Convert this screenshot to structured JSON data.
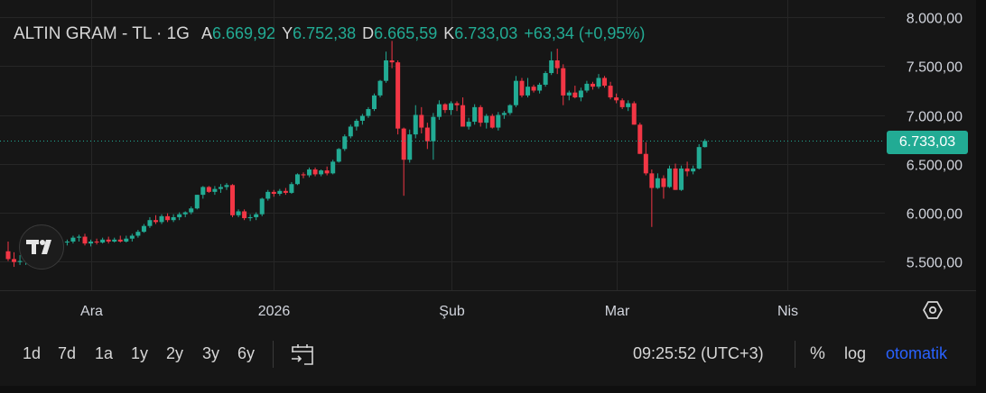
{
  "legend": {
    "symbol": "ALTIN GRAM - TL · 1G",
    "open_label": "A",
    "open": "6.669,92",
    "high_label": "Y",
    "high": "6.752,38",
    "low_label": "D",
    "low": "6.665,59",
    "close_label": "K",
    "close": "6.733,03",
    "change": "+63,34 (+0,95%)"
  },
  "last_price_tag": "6.733,03",
  "toolbar": {
    "timeframes": [
      "1d",
      "7d",
      "1a",
      "1y",
      "2y",
      "3y",
      "6y"
    ],
    "clock": "09:25:52 (UTC+3)",
    "percent_label": "%",
    "log_label": "log",
    "auto_label": "otomatik"
  },
  "colors": {
    "up": "#22ab94",
    "down": "#f23645",
    "background": "#161616",
    "grid": "#262626",
    "axis_text": "#d1d4dc",
    "accent": "#2962ff"
  },
  "icons": {
    "logo": "tradingview-logo-icon",
    "settings": "settings-icon",
    "date_range": "calendar-range-icon"
  },
  "chart_data": {
    "type": "candlestick",
    "title": "ALTIN GRAM - TL · 1G",
    "yaxis": {
      "ticks": [
        5500,
        6000,
        6500,
        7000,
        7500,
        8000
      ],
      "tick_labels": [
        "5.500,00",
        "6.000,00",
        "6.500,00",
        "7.000,00",
        "7.500,00",
        "8.000,00"
      ],
      "range": [
        5200,
        8180
      ],
      "position": "right"
    },
    "xaxis": {
      "tick_labels": [
        {
          "label": "Ara",
          "index": 14
        },
        {
          "label": "2026",
          "index": 45
        },
        {
          "label": "Şub",
          "index": 75
        },
        {
          "label": "Mar",
          "index": 103
        },
        {
          "label": "Nis",
          "index": 132
        }
      ]
    },
    "grid": true,
    "last_price": 6733.03,
    "candles": [
      [
        5600,
        5700,
        5500,
        5520
      ],
      [
        5520,
        5590,
        5440,
        5490
      ],
      [
        5490,
        5560,
        5460,
        5500
      ],
      [
        5500,
        5600,
        5460,
        5570
      ],
      [
        5570,
        5620,
        5520,
        5590
      ],
      [
        5590,
        5640,
        5560,
        5620
      ],
      [
        5620,
        5660,
        5580,
        5640
      ],
      [
        5640,
        5660,
        5610,
        5650
      ],
      [
        5650,
        5680,
        5620,
        5660
      ],
      [
        5660,
        5700,
        5630,
        5690
      ],
      [
        5690,
        5720,
        5660,
        5700
      ],
      [
        5700,
        5760,
        5680,
        5740
      ],
      [
        5740,
        5770,
        5700,
        5750
      ],
      [
        5750,
        5780,
        5660,
        5680
      ],
      [
        5680,
        5720,
        5650,
        5700
      ],
      [
        5700,
        5730,
        5670,
        5690
      ],
      [
        5690,
        5740,
        5680,
        5720
      ],
      [
        5720,
        5750,
        5680,
        5700
      ],
      [
        5700,
        5740,
        5690,
        5720
      ],
      [
        5720,
        5760,
        5690,
        5700
      ],
      [
        5700,
        5760,
        5690,
        5730
      ],
      [
        5730,
        5780,
        5700,
        5760
      ],
      [
        5760,
        5820,
        5740,
        5800
      ],
      [
        5800,
        5880,
        5790,
        5860
      ],
      [
        5860,
        5950,
        5840,
        5920
      ],
      [
        5920,
        5970,
        5880,
        5900
      ],
      [
        5900,
        5980,
        5880,
        5960
      ],
      [
        5960,
        5990,
        5900,
        5920
      ],
      [
        5920,
        5980,
        5900,
        5950
      ],
      [
        5950,
        6000,
        5920,
        5980
      ],
      [
        5980,
        6010,
        5950,
        6000
      ],
      [
        6000,
        6060,
        5980,
        6040
      ],
      [
        6040,
        6180,
        6030,
        6180
      ],
      [
        6180,
        6270,
        6140,
        6260
      ],
      [
        6260,
        6270,
        6200,
        6210
      ],
      [
        6210,
        6270,
        6180,
        6240
      ],
      [
        6240,
        6290,
        6200,
        6260
      ],
      [
        6260,
        6300,
        6230,
        6280
      ],
      [
        6280,
        6290,
        5950,
        5970
      ],
      [
        5970,
        6030,
        5950,
        6010
      ],
      [
        6010,
        6030,
        5920,
        5940
      ],
      [
        5940,
        5980,
        5910,
        5950
      ],
      [
        5950,
        6000,
        5920,
        5980
      ],
      [
        5980,
        6150,
        5960,
        6140
      ],
      [
        6140,
        6230,
        6120,
        6210
      ],
      [
        6210,
        6230,
        6160,
        6190
      ],
      [
        6190,
        6240,
        6170,
        6220
      ],
      [
        6220,
        6250,
        6180,
        6200
      ],
      [
        6200,
        6310,
        6190,
        6290
      ],
      [
        6290,
        6400,
        6280,
        6390
      ],
      [
        6390,
        6410,
        6350,
        6380
      ],
      [
        6380,
        6460,
        6360,
        6440
      ],
      [
        6440,
        6460,
        6370,
        6390
      ],
      [
        6390,
        6440,
        6370,
        6430
      ],
      [
        6430,
        6470,
        6380,
        6400
      ],
      [
        6400,
        6540,
        6390,
        6520
      ],
      [
        6520,
        6660,
        6510,
        6650
      ],
      [
        6650,
        6800,
        6630,
        6780
      ],
      [
        6780,
        6900,
        6760,
        6880
      ],
      [
        6880,
        6960,
        6840,
        6940
      ],
      [
        6940,
        7010,
        6900,
        6990
      ],
      [
        6990,
        7080,
        6970,
        7060
      ],
      [
        7060,
        7220,
        7040,
        7200
      ],
      [
        7200,
        7360,
        7180,
        7350
      ],
      [
        7350,
        7650,
        7330,
        7560
      ],
      [
        7560,
        7760,
        7480,
        7540
      ],
      [
        7540,
        7560,
        6800,
        6860
      ],
      [
        6860,
        6870,
        6170,
        6540
      ],
      [
        6540,
        6850,
        6510,
        6800
      ],
      [
        6800,
        7100,
        6760,
        7000
      ],
      [
        7000,
        7080,
        6810,
        6870
      ],
      [
        6870,
        6920,
        6650,
        6730
      ],
      [
        6730,
        7020,
        6540,
        6980
      ],
      [
        6980,
        7150,
        6950,
        7110
      ],
      [
        7110,
        7120,
        7020,
        7050
      ],
      [
        7050,
        7140,
        7000,
        7120
      ],
      [
        7120,
        7140,
        7040,
        7100
      ],
      [
        7100,
        7180,
        6880,
        6880
      ],
      [
        6880,
        6970,
        6850,
        6930
      ],
      [
        6930,
        7110,
        6900,
        7080
      ],
      [
        7080,
        7100,
        6880,
        6920
      ],
      [
        6920,
        7010,
        6860,
        6990
      ],
      [
        6990,
        7010,
        6860,
        6870
      ],
      [
        6870,
        7030,
        6840,
        7000
      ],
      [
        7000,
        7040,
        6960,
        7020
      ],
      [
        7020,
        7110,
        7000,
        7100
      ],
      [
        7100,
        7400,
        7080,
        7350
      ],
      [
        7350,
        7380,
        7180,
        7200
      ],
      [
        7200,
        7380,
        7180,
        7290
      ],
      [
        7290,
        7310,
        7230,
        7250
      ],
      [
        7250,
        7330,
        7220,
        7310
      ],
      [
        7310,
        7450,
        7290,
        7430
      ],
      [
        7430,
        7650,
        7410,
        7560
      ],
      [
        7560,
        7680,
        7420,
        7480
      ],
      [
        7480,
        7520,
        7100,
        7200
      ],
      [
        7200,
        7250,
        7150,
        7230
      ],
      [
        7230,
        7300,
        7170,
        7180
      ],
      [
        7180,
        7280,
        7140,
        7250
      ],
      [
        7250,
        7350,
        7230,
        7320
      ],
      [
        7320,
        7340,
        7260,
        7290
      ],
      [
        7290,
        7420,
        7270,
        7380
      ],
      [
        7380,
        7400,
        7280,
        7300
      ],
      [
        7300,
        7340,
        7160,
        7180
      ],
      [
        7180,
        7220,
        7120,
        7150
      ],
      [
        7150,
        7170,
        7060,
        7080
      ],
      [
        7080,
        7150,
        7040,
        7120
      ],
      [
        7120,
        7140,
        6900,
        6900
      ],
      [
        6900,
        6920,
        6600,
        6600
      ],
      [
        6600,
        6720,
        6380,
        6400
      ],
      [
        6400,
        6440,
        5850,
        6250
      ],
      [
        6250,
        6400,
        6240,
        6350
      ],
      [
        6350,
        6380,
        6140,
        6260
      ],
      [
        6260,
        6480,
        6250,
        6450
      ],
      [
        6450,
        6500,
        6230,
        6230
      ],
      [
        6230,
        6480,
        6220,
        6450
      ],
      [
        6450,
        6520,
        6370,
        6420
      ],
      [
        6420,
        6480,
        6390,
        6450
      ],
      [
        6450,
        6700,
        6440,
        6670
      ],
      [
        6669.92,
        6752.38,
        6665.59,
        6733.03
      ]
    ]
  }
}
